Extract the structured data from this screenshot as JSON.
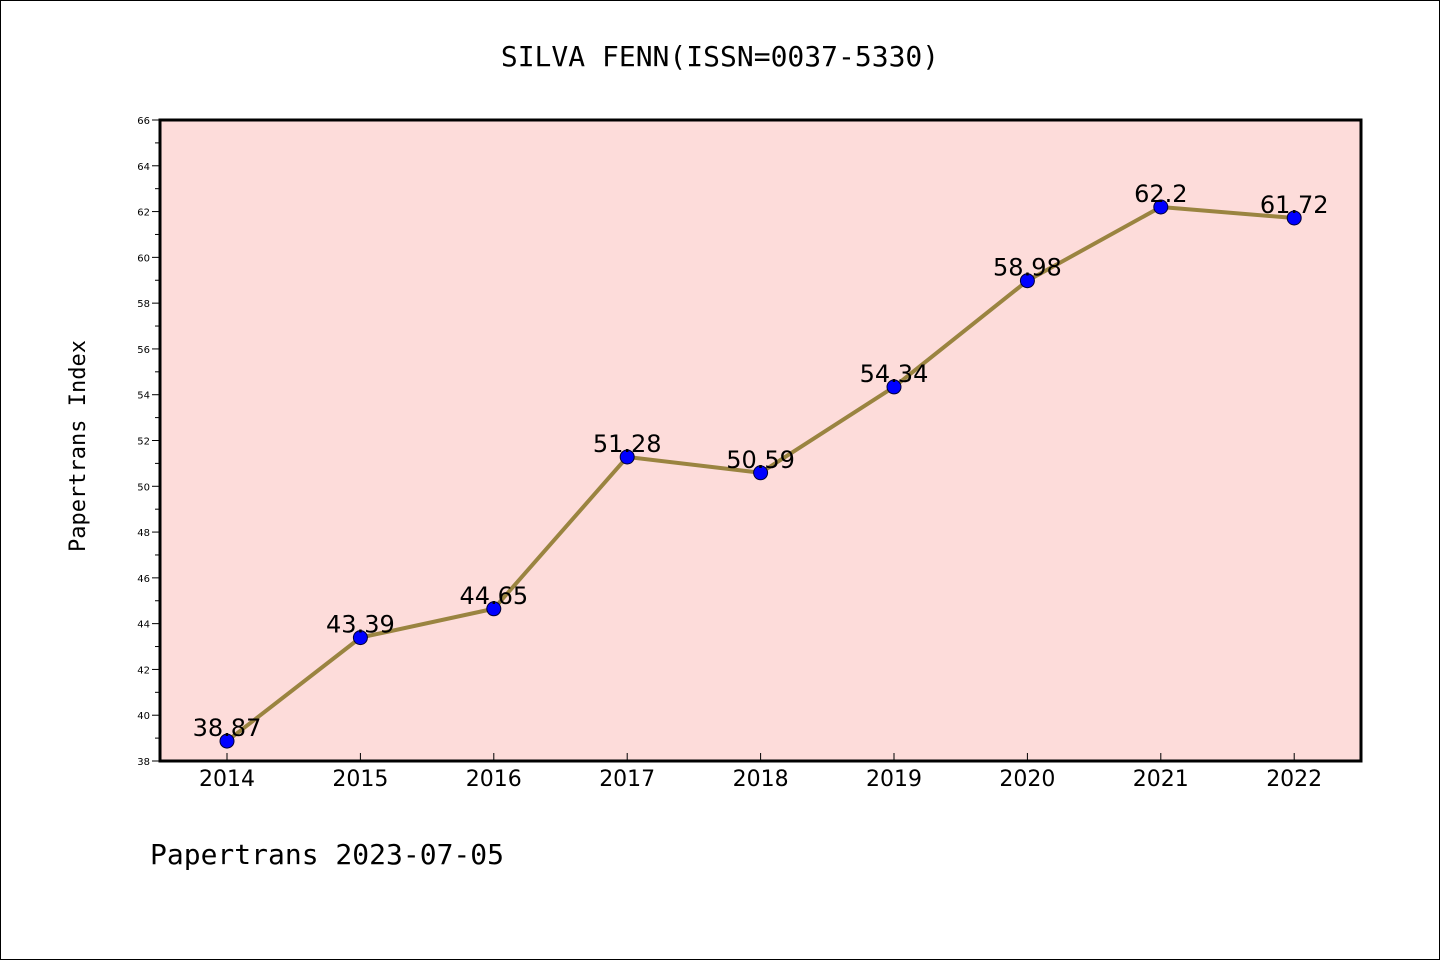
{
  "chart_data": {
    "type": "line",
    "title": "SILVA FENN(ISSN=0037-5330)",
    "xlabel": "",
    "ylabel": "Papertrans Index",
    "categories": [
      "2014",
      "2015",
      "2016",
      "2017",
      "2018",
      "2019",
      "2020",
      "2021",
      "2022"
    ],
    "series": [
      {
        "values": [
          38.87,
          43.39,
          44.65,
          51.28,
          50.59,
          54.34,
          58.98,
          62.2,
          61.72
        ],
        "labels": [
          "38.87",
          "43.39",
          "44.65",
          "51.28",
          "50.59",
          "54.34",
          "58.98",
          "62.2",
          "61.72"
        ]
      }
    ],
    "ylim": [
      38,
      66
    ],
    "yticks": [
      "38",
      "40",
      "42",
      "44",
      "46",
      "48",
      "50",
      "52",
      "54",
      "56",
      "58",
      "60",
      "62",
      "64",
      "66"
    ],
    "grid": false,
    "legend": "none",
    "footer": "Papertrans 2023-07-05",
    "colors": {
      "plot_background": "#fddcda",
      "line": "#9a8440",
      "marker": "#0000ff",
      "marker_edge": "#000033"
    }
  }
}
